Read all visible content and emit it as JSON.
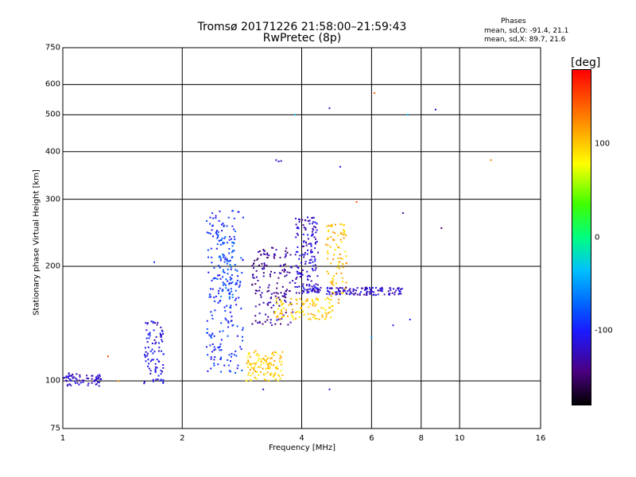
{
  "header": {
    "title": "Tromsø 20171226 21:58:00–21:59:43",
    "subtitle": "RwPretec (8p)",
    "phases_label": "Phases",
    "phase_o": "mean, sd,O: -91.4, 21.1",
    "phase_x": "mean, sd,X: 89.7, 21.6"
  },
  "colorbar": {
    "unit": "[deg]",
    "ticks": [
      "100",
      "0",
      "-100"
    ],
    "tick_values": [
      100,
      0,
      -100
    ],
    "range": [
      -180,
      180
    ]
  },
  "chart_data": {
    "type": "scatter",
    "xlabel": "Frequency [MHz]",
    "ylabel": "Stationary phase Virtual Height [km]",
    "xscale": "log",
    "yscale": "log",
    "xlim": [
      1,
      16
    ],
    "ylim": [
      75,
      750
    ],
    "x_ticks": [
      "1",
      "2",
      "4",
      "6",
      "8",
      "10",
      "16"
    ],
    "x_tick_values": [
      1,
      2,
      4,
      6,
      8,
      10,
      16
    ],
    "y_ticks": [
      "750",
      "600",
      "500",
      "400",
      "300",
      "200",
      "100",
      "75"
    ],
    "y_tick_values": [
      750,
      600,
      500,
      400,
      300,
      200,
      100,
      75
    ],
    "grid": true,
    "color_scale": "phase [deg]",
    "clusters": [
      {
        "fmin": 1.0,
        "fmax": 1.25,
        "hmin": 97,
        "hmax": 105,
        "phase": -120,
        "n": 70
      },
      {
        "fmin": 1.6,
        "fmax": 1.8,
        "hmin": 98,
        "hmax": 145,
        "phase": -110,
        "n": 90
      },
      {
        "fmin": 2.3,
        "fmax": 2.85,
        "hmin": 105,
        "hmax": 280,
        "phase": -95,
        "n": 220
      },
      {
        "fmin": 2.45,
        "fmax": 2.7,
        "hmin": 165,
        "hmax": 240,
        "phase": -80,
        "n": 50
      },
      {
        "fmin": 2.9,
        "fmax": 3.6,
        "hmin": 100,
        "hmax": 120,
        "phase": 100,
        "n": 110
      },
      {
        "fmin": 3.0,
        "fmax": 3.8,
        "hmin": 140,
        "hmax": 225,
        "phase": -135,
        "n": 160
      },
      {
        "fmin": 3.4,
        "fmax": 4.8,
        "hmin": 145,
        "hmax": 165,
        "phase": 100,
        "n": 110
      },
      {
        "fmin": 3.85,
        "fmax": 4.4,
        "hmin": 170,
        "hmax": 270,
        "phase": -120,
        "n": 150
      },
      {
        "fmin": 4.6,
        "fmax": 5.2,
        "hmin": 160,
        "hmax": 260,
        "phase": 105,
        "n": 90
      },
      {
        "fmin": 4.0,
        "fmax": 7.2,
        "hmin": 168,
        "hmax": 176,
        "phase": -120,
        "n": 140
      }
    ],
    "outliers": [
      {
        "x": 1.38,
        "y": 100,
        "phase": 120
      },
      {
        "x": 1.3,
        "y": 116,
        "phase": 150
      },
      {
        "x": 1.7,
        "y": 205,
        "phase": -90
      },
      {
        "x": 3.45,
        "y": 380,
        "phase": -120
      },
      {
        "x": 3.5,
        "y": 377,
        "phase": -110
      },
      {
        "x": 3.55,
        "y": 378,
        "phase": -125
      },
      {
        "x": 3.85,
        "y": 500,
        "phase": -30
      },
      {
        "x": 4.7,
        "y": 520,
        "phase": -120
      },
      {
        "x": 6.1,
        "y": 570,
        "phase": 140
      },
      {
        "x": 7.4,
        "y": 500,
        "phase": -40
      },
      {
        "x": 8.7,
        "y": 516,
        "phase": -120
      },
      {
        "x": 5.0,
        "y": 365,
        "phase": -110
      },
      {
        "x": 12.0,
        "y": 380,
        "phase": 130
      },
      {
        "x": 9.0,
        "y": 252,
        "phase": -150
      },
      {
        "x": 7.2,
        "y": 276,
        "phase": -140
      },
      {
        "x": 5.5,
        "y": 295,
        "phase": 150
      },
      {
        "x": 4.7,
        "y": 95,
        "phase": -110
      },
      {
        "x": 3.2,
        "y": 95,
        "phase": -130
      },
      {
        "x": 6.0,
        "y": 130,
        "phase": -50
      },
      {
        "x": 6.8,
        "y": 140,
        "phase": -110
      },
      {
        "x": 7.5,
        "y": 145,
        "phase": -100
      }
    ]
  }
}
